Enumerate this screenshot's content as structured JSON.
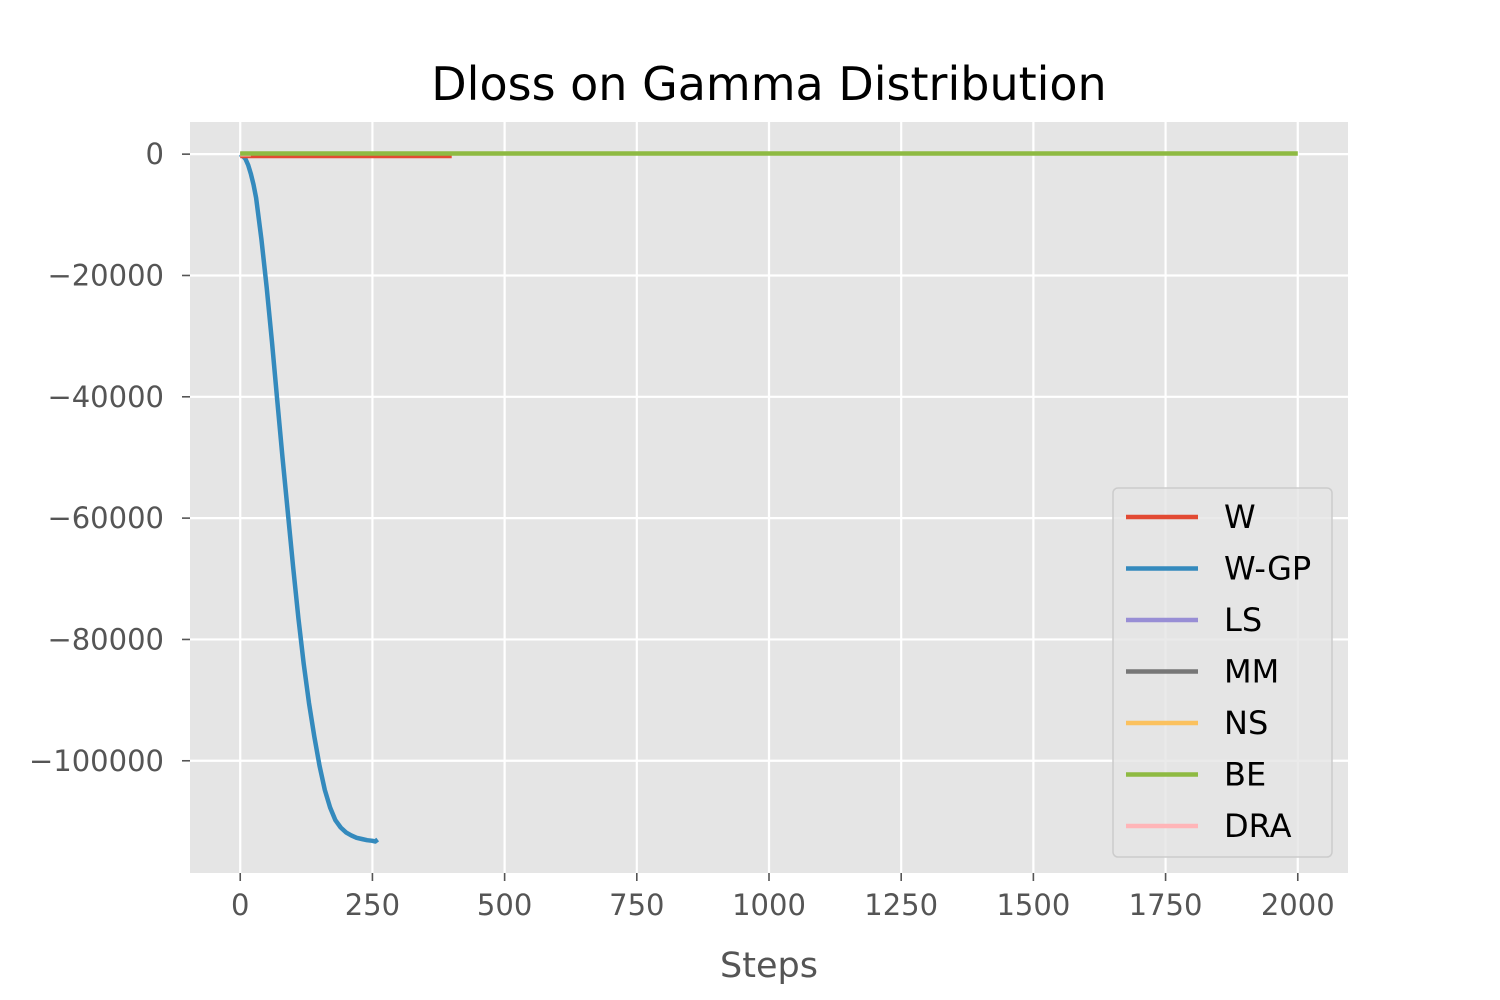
{
  "chart_data": {
    "type": "line",
    "title": "Dloss on Gamma Distribution",
    "xlabel": "Steps",
    "ylabel": "",
    "xlim": [
      -95,
      2095
    ],
    "ylim": [
      -118500,
      5300
    ],
    "xticks": [
      0,
      250,
      500,
      750,
      1000,
      1250,
      1500,
      1750,
      2000
    ],
    "xtick_labels": [
      "0",
      "250",
      "500",
      "750",
      "1000",
      "1250",
      "1500",
      "1750",
      "2000"
    ],
    "yticks": [
      0,
      -20000,
      -40000,
      -60000,
      -80000,
      -100000
    ],
    "ytick_labels": [
      "0",
      "−20000",
      "−40000",
      "−60000",
      "−80000",
      "−100000"
    ],
    "grid": true,
    "legend_position": "lower right",
    "series": [
      {
        "name": "W",
        "color": "#E24A33",
        "x": [
          0,
          100,
          200,
          300,
          400
        ],
        "y": [
          -300,
          -300,
          -300,
          -300,
          -300
        ]
      },
      {
        "name": "W-GP",
        "color": "#348ABD",
        "x": [
          0,
          5,
          10,
          15,
          20,
          25,
          30,
          40,
          50,
          60,
          70,
          80,
          90,
          100,
          110,
          120,
          130,
          140,
          150,
          160,
          170,
          180,
          190,
          200,
          210,
          220,
          230,
          240,
          250,
          255,
          260
        ],
        "y": [
          0,
          -300,
          -800,
          -1800,
          -3200,
          -5000,
          -7200,
          -14000,
          -22000,
          -31000,
          -40500,
          -50000,
          -59000,
          -68000,
          -76500,
          -84000,
          -90500,
          -96000,
          -100800,
          -104800,
          -107700,
          -109800,
          -111000,
          -111800,
          -112300,
          -112700,
          -112900,
          -113100,
          -113200,
          -113300,
          -113000
        ]
      },
      {
        "name": "LS",
        "color": "#988ED5",
        "x": [
          0,
          10,
          20
        ],
        "y": [
          0,
          0,
          0
        ]
      },
      {
        "name": "MM",
        "color": "#777777",
        "x": [
          0,
          10,
          20
        ],
        "y": [
          0,
          0,
          0
        ]
      },
      {
        "name": "NS",
        "color": "#FBC15E",
        "x": [
          0,
          10,
          20
        ],
        "y": [
          0,
          0,
          0
        ]
      },
      {
        "name": "BE",
        "color": "#8EBA42",
        "x": [
          0,
          500,
          1000,
          1500,
          2000
        ],
        "y": [
          100,
          100,
          100,
          100,
          100
        ]
      },
      {
        "name": "DRA",
        "color": "#FFB5B8",
        "x": [
          0,
          10,
          20
        ],
        "y": [
          0,
          0,
          0
        ]
      }
    ]
  }
}
